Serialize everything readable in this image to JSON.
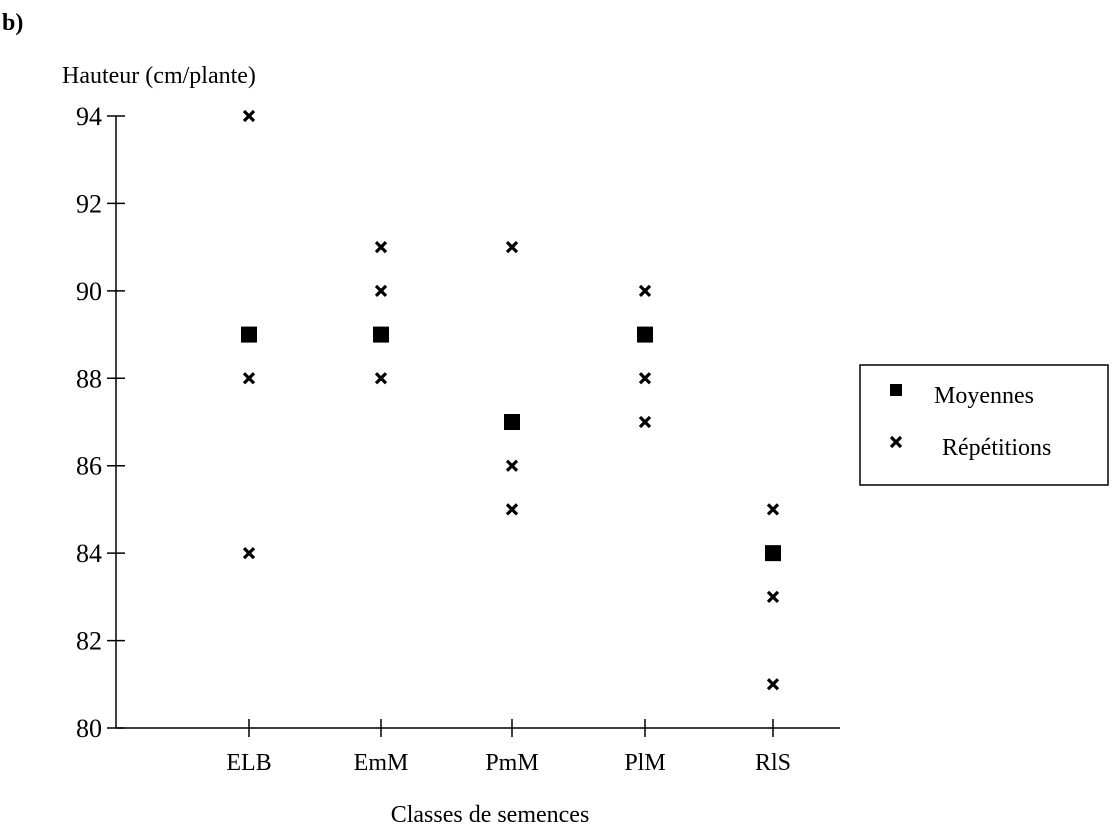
{
  "chart_data": {
    "type": "scatter",
    "panel_label": "b)",
    "ylabel": "Hauteur (cm/plante)",
    "xlabel": "Classes de semences",
    "ylim": [
      80,
      94
    ],
    "yticks": [
      80,
      82,
      84,
      86,
      88,
      90,
      92,
      94
    ],
    "categories": [
      "ELB",
      "EmM",
      "PmM",
      "PlM",
      "RlS"
    ],
    "series": [
      {
        "name": "Moyennes",
        "marker": "square",
        "color": "#000000",
        "values": [
          89,
          89,
          87,
          89,
          84
        ]
      },
      {
        "name": "Répétitions",
        "marker": "x",
        "color": "#000000",
        "values": [
          [
            94,
            88,
            84
          ],
          [
            91,
            90,
            88
          ],
          [
            91,
            86,
            85
          ],
          [
            90,
            88,
            87
          ],
          [
            85,
            83,
            81
          ]
        ]
      }
    ],
    "legend_position": "right",
    "grid": false
  }
}
